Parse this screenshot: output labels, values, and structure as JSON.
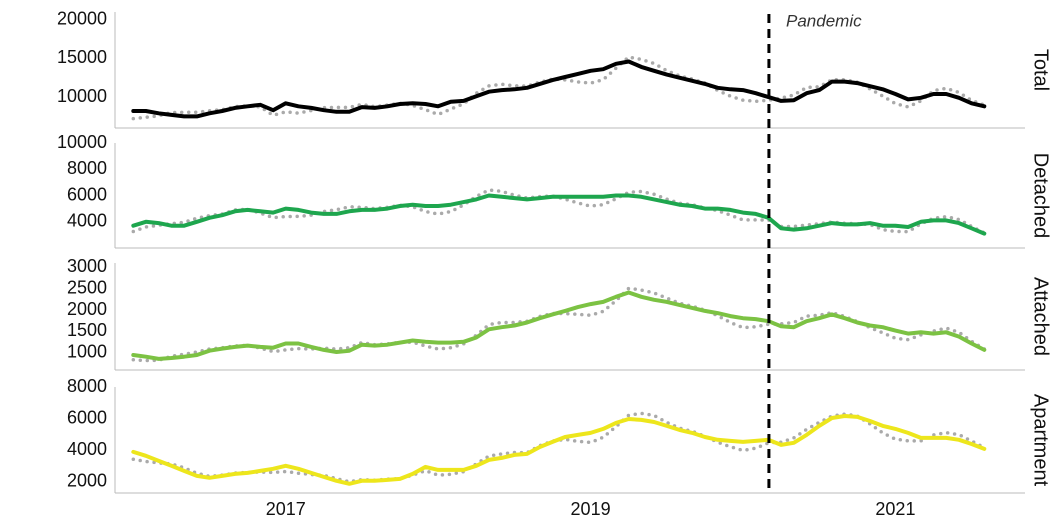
{
  "annotation": {
    "text": "Pandemic",
    "x": 2020.17
  },
  "chart_data": [
    {
      "type": "line",
      "title": "Total",
      "xlim": [
        2015.88,
        2021.85
      ],
      "ylim": [
        6000,
        21000
      ],
      "yticks": [
        10000,
        15000,
        20000
      ],
      "x": [
        2016,
        2016.083,
        2016.167,
        2016.25,
        2016.333,
        2016.417,
        2016.5,
        2016.583,
        2016.667,
        2016.75,
        2016.833,
        2016.917,
        2017,
        2017.083,
        2017.167,
        2017.25,
        2017.333,
        2017.417,
        2017.5,
        2017.583,
        2017.667,
        2017.75,
        2017.833,
        2017.917,
        2018,
        2018.083,
        2018.167,
        2018.25,
        2018.333,
        2018.417,
        2018.5,
        2018.583,
        2018.667,
        2018.75,
        2018.833,
        2018.917,
        2019,
        2019.083,
        2019.167,
        2019.25,
        2019.333,
        2019.417,
        2019.5,
        2019.583,
        2019.667,
        2019.75,
        2019.833,
        2019.917,
        2020,
        2020.083,
        2020.167,
        2020.25,
        2020.333,
        2020.417,
        2020.5,
        2020.583,
        2020.667,
        2020.75,
        2020.833,
        2020.917,
        2021,
        2021.083,
        2021.167,
        2021.25,
        2021.333,
        2021.417,
        2021.5,
        2021.583
      ],
      "series": [
        {
          "color": "#aaaaaa",
          "style": "dotted",
          "values": [
            7220,
            7380,
            7580,
            8010,
            8030,
            8030,
            8220,
            8360,
            8770,
            8890,
            8730,
            7640,
            8100,
            7920,
            8260,
            8630,
            8670,
            8670,
            9050,
            8770,
            8980,
            9190,
            8920,
            8370,
            7740,
            8460,
            9120,
            10500,
            11450,
            11660,
            11440,
            11420,
            11930,
            12320,
            12220,
            11960,
            11790,
            12240,
            13730,
            15180,
            14870,
            14340,
            13420,
            12750,
            12340,
            11820,
            10860,
            10120,
            9590,
            9450,
            9600,
            9880,
            10270,
            11240,
            11340,
            12240,
            12240,
            11920,
            11060,
            10120,
            9150,
            8730,
            9500,
            10820,
            11130,
            10590,
            9570,
            8980
          ]
        },
        {
          "color": "#000000",
          "values": [
            8200,
            8200,
            7900,
            7700,
            7500,
            7500,
            7900,
            8200,
            8600,
            8800,
            9000,
            8300,
            9200,
            8800,
            8600,
            8300,
            8100,
            8100,
            8700,
            8600,
            8800,
            9100,
            9200,
            9100,
            8800,
            9400,
            9500,
            10100,
            10700,
            10900,
            11000,
            11200,
            11700,
            12200,
            12600,
            13000,
            13400,
            13600,
            14300,
            14600,
            13900,
            13400,
            12900,
            12500,
            12100,
            11700,
            11200,
            11000,
            10900,
            10500,
            10000,
            9500,
            9600,
            10500,
            10900,
            12000,
            12000,
            11800,
            11400,
            11000,
            10400,
            9700,
            9900,
            10400,
            10400,
            9900,
            9200,
            8800
          ]
        }
      ]
    },
    {
      "type": "line",
      "title": "Detached",
      "xlim": [
        2015.88,
        2021.85
      ],
      "ylim": [
        2000,
        10000
      ],
      "yticks": [
        4000,
        6000,
        8000,
        10000
      ],
      "x": [
        2016,
        2016.083,
        2016.167,
        2016.25,
        2016.333,
        2016.417,
        2016.5,
        2016.583,
        2016.667,
        2016.75,
        2016.833,
        2016.917,
        2017,
        2017.083,
        2017.167,
        2017.25,
        2017.333,
        2017.417,
        2017.5,
        2017.583,
        2017.667,
        2017.75,
        2017.833,
        2017.917,
        2018,
        2018.083,
        2018.167,
        2018.25,
        2018.333,
        2018.417,
        2018.5,
        2018.583,
        2018.667,
        2018.75,
        2018.833,
        2018.917,
        2019,
        2019.083,
        2019.167,
        2019.25,
        2019.333,
        2019.417,
        2019.5,
        2019.583,
        2019.667,
        2019.75,
        2019.833,
        2019.917,
        2020,
        2020.083,
        2020.167,
        2020.25,
        2020.333,
        2020.417,
        2020.5,
        2020.583,
        2020.667,
        2020.75,
        2020.833,
        2020.917,
        2021,
        2021.083,
        2021.167,
        2021.25,
        2021.333,
        2021.417,
        2021.5,
        2021.583
      ],
      "series": [
        {
          "color": "#aaaaaa",
          "style": "dotted",
          "values": [
            3260,
            3600,
            3740,
            3850,
            3960,
            4280,
            4470,
            4590,
            4900,
            4950,
            4660,
            4320,
            4400,
            4410,
            4510,
            4780,
            4920,
            5140,
            5100,
            5000,
            5100,
            5250,
            5140,
            4780,
            4580,
            4770,
            5280,
            5930,
            6420,
            6310,
            6030,
            5810,
            5920,
            5960,
            5720,
            5430,
            5190,
            5310,
            5760,
            6240,
            6310,
            6100,
            5720,
            5410,
            5300,
            5050,
            4850,
            4510,
            4140,
            4140,
            4130,
            3640,
            3640,
            3750,
            3850,
            3980,
            3880,
            3840,
            3780,
            3400,
            3260,
            3240,
            3840,
            4260,
            4390,
            4170,
            3640,
            3160
          ]
        },
        {
          "color": "#1ea64e",
          "values": [
            3700,
            4000,
            3900,
            3700,
            3700,
            4000,
            4300,
            4500,
            4800,
            4900,
            4800,
            4700,
            5000,
            4900,
            4700,
            4600,
            4600,
            4800,
            4900,
            4900,
            5000,
            5200,
            5300,
            5200,
            5200,
            5300,
            5500,
            5700,
            6000,
            5900,
            5800,
            5700,
            5800,
            5900,
            5900,
            5900,
            5900,
            5900,
            6000,
            6000,
            5900,
            5700,
            5500,
            5300,
            5200,
            5000,
            5000,
            4900,
            4700,
            4600,
            4300,
            3500,
            3400,
            3500,
            3700,
            3900,
            3800,
            3800,
            3900,
            3700,
            3700,
            3600,
            4000,
            4100,
            4100,
            3900,
            3500,
            3100
          ]
        }
      ]
    },
    {
      "type": "line",
      "title": "Attached",
      "xlim": [
        2015.88,
        2021.85
      ],
      "ylim": [
        600,
        3100
      ],
      "yticks": [
        1000,
        1500,
        2000,
        2500,
        3000
      ],
      "x": [
        2016,
        2016.083,
        2016.167,
        2016.25,
        2016.333,
        2016.417,
        2016.5,
        2016.583,
        2016.667,
        2016.75,
        2016.833,
        2016.917,
        2017,
        2017.083,
        2017.167,
        2017.25,
        2017.333,
        2017.417,
        2017.5,
        2017.583,
        2017.667,
        2017.75,
        2017.833,
        2017.917,
        2018,
        2018.083,
        2018.167,
        2018.25,
        2018.333,
        2018.417,
        2018.5,
        2018.583,
        2018.667,
        2018.75,
        2018.833,
        2018.917,
        2019,
        2019.083,
        2019.167,
        2019.25,
        2019.333,
        2019.417,
        2019.5,
        2019.583,
        2019.667,
        2019.75,
        2019.833,
        2019.917,
        2020,
        2020.083,
        2020.167,
        2020.25,
        2020.333,
        2020.417,
        2020.5,
        2020.583,
        2020.667,
        2020.75,
        2020.833,
        2020.917,
        2021,
        2021.083,
        2021.167,
        2021.25,
        2021.333,
        2021.417,
        2021.5,
        2021.583
      ],
      "series": [
        {
          "color": "#aaaaaa",
          "style": "dotted",
          "values": [
            840,
            820,
            830,
            920,
            970,
            1020,
            1090,
            1120,
            1160,
            1180,
            1110,
            1030,
            1070,
            1100,
            1090,
            1110,
            1090,
            1120,
            1240,
            1190,
            1210,
            1250,
            1250,
            1160,
            1090,
            1120,
            1210,
            1410,
            1660,
            1710,
            1710,
            1740,
            1850,
            1920,
            1920,
            1900,
            1880,
            1970,
            2220,
            2510,
            2470,
            2400,
            2280,
            2160,
            2090,
            2000,
            1870,
            1710,
            1590,
            1610,
            1670,
            1680,
            1710,
            1860,
            1880,
            1940,
            1850,
            1730,
            1590,
            1470,
            1340,
            1310,
            1420,
            1510,
            1580,
            1480,
            1270,
            1090
          ]
        },
        {
          "color": "#7cc243",
          "values": [
            950,
            910,
            860,
            880,
            910,
            950,
            1050,
            1100,
            1140,
            1170,
            1140,
            1120,
            1220,
            1220,
            1140,
            1070,
            1020,
            1050,
            1190,
            1170,
            1190,
            1240,
            1290,
            1260,
            1240,
            1240,
            1260,
            1360,
            1550,
            1600,
            1640,
            1710,
            1810,
            1900,
            1980,
            2070,
            2140,
            2190,
            2310,
            2410,
            2310,
            2240,
            2190,
            2120,
            2050,
            1980,
            1930,
            1860,
            1810,
            1790,
            1740,
            1620,
            1600,
            1740,
            1810,
            1900,
            1810,
            1710,
            1640,
            1600,
            1520,
            1450,
            1480,
            1450,
            1480,
            1380,
            1220,
            1070
          ]
        }
      ]
    },
    {
      "type": "line",
      "title": "Apartment",
      "xlim": [
        2015.88,
        2021.85
      ],
      "ylim": [
        1300,
        8000
      ],
      "yticks": [
        2000,
        4000,
        6000,
        8000
      ],
      "xticks": [
        2017,
        2019,
        2021
      ],
      "x": [
        2016,
        2016.083,
        2016.167,
        2016.25,
        2016.333,
        2016.417,
        2016.5,
        2016.583,
        2016.667,
        2016.75,
        2016.833,
        2016.917,
        2017,
        2017.083,
        2017.167,
        2017.25,
        2017.333,
        2017.417,
        2017.5,
        2017.583,
        2017.667,
        2017.75,
        2017.833,
        2017.917,
        2018,
        2018.083,
        2018.167,
        2018.25,
        2018.333,
        2018.417,
        2018.5,
        2018.583,
        2018.667,
        2018.75,
        2018.833,
        2018.917,
        2019,
        2019.083,
        2019.167,
        2019.25,
        2019.333,
        2019.417,
        2019.5,
        2019.583,
        2019.667,
        2019.75,
        2019.833,
        2019.917,
        2020,
        2020.083,
        2020.167,
        2020.25,
        2020.333,
        2020.417,
        2020.5,
        2020.583,
        2020.667,
        2020.75,
        2020.833,
        2020.917,
        2021,
        2021.083,
        2021.167,
        2021.25,
        2021.333,
        2021.417,
        2021.5,
        2021.583
      ],
      "series": [
        {
          "color": "#aaaaaa",
          "style": "dotted",
          "values": [
            3430,
            3290,
            3200,
            3140,
            2890,
            2550,
            2350,
            2430,
            2560,
            2600,
            2620,
            2600,
            2660,
            2550,
            2470,
            2410,
            2210,
            2010,
            2150,
            2110,
            2170,
            2210,
            2430,
            2710,
            2430,
            2480,
            2650,
            3140,
            3630,
            3770,
            3860,
            3850,
            4290,
            4580,
            4690,
            4570,
            4490,
            4820,
            5500,
            6220,
            6330,
            6200,
            5760,
            5400,
            5200,
            4890,
            4520,
            4220,
            3990,
            4130,
            4470,
            4510,
            4780,
            5320,
            5760,
            6160,
            6290,
            6170,
            5670,
            5100,
            4710,
            4590,
            4590,
            4970,
            5110,
            4990,
            4580,
            4170
          ]
        },
        {
          "color": "#ede61c",
          "values": [
            3900,
            3650,
            3330,
            3020,
            2700,
            2380,
            2260,
            2380,
            2510,
            2570,
            2700,
            2830,
            3020,
            2830,
            2570,
            2320,
            2070,
            1880,
            2070,
            2070,
            2130,
            2190,
            2510,
            2950,
            2760,
            2760,
            2760,
            3020,
            3390,
            3520,
            3710,
            3770,
            4210,
            4530,
            4840,
            4970,
            5100,
            5350,
            5730,
            5980,
            5920,
            5790,
            5540,
            5290,
            5100,
            4840,
            4660,
            4590,
            4530,
            4590,
            4660,
            4340,
            4470,
            4970,
            5540,
            6040,
            6170,
            6110,
            5850,
            5540,
            5350,
            5100,
            4780,
            4780,
            4780,
            4660,
            4400,
            4090
          ]
        }
      ]
    }
  ]
}
